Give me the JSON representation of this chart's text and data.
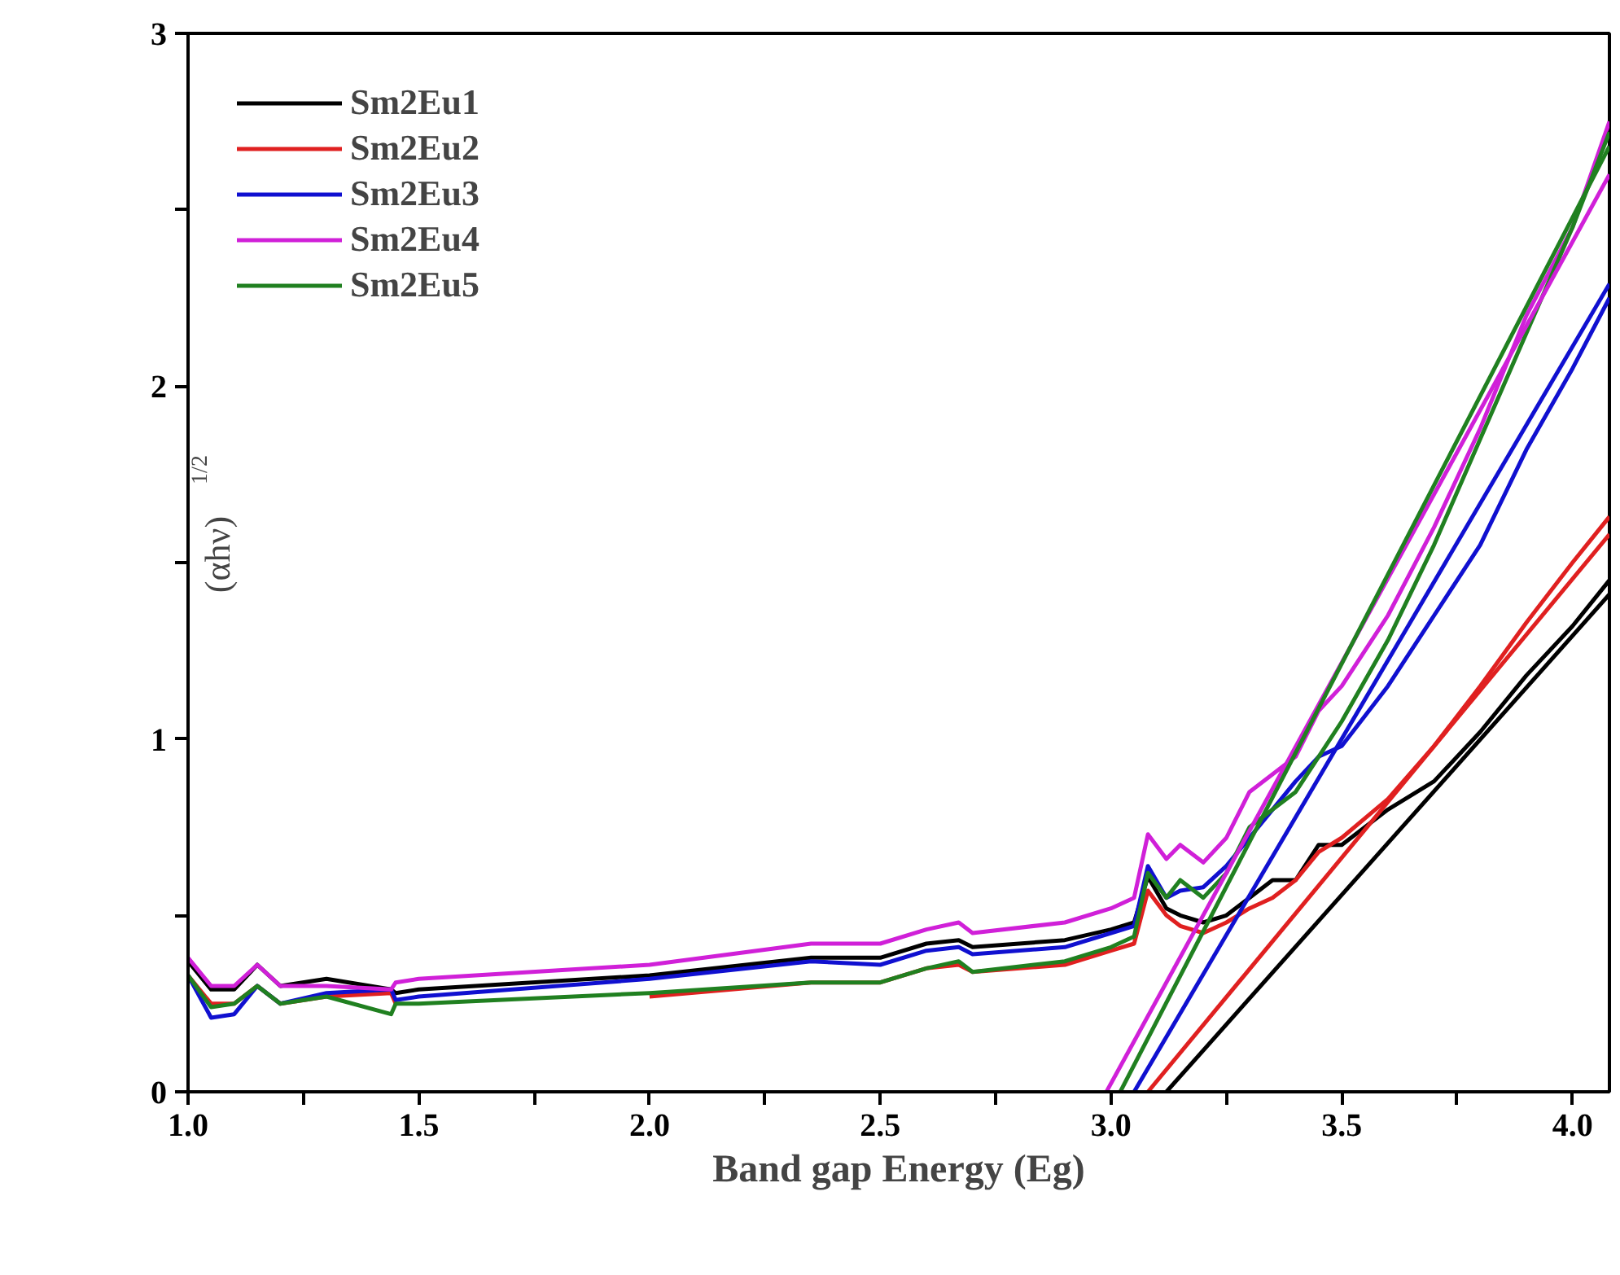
{
  "chart_data": {
    "type": "line",
    "xlabel": "Band gap Energy (Eg)",
    "ylabel": "(αhν)$^{1/2}$",
    "xlim": [
      1.0,
      4.08
    ],
    "ylim": [
      0,
      3
    ],
    "xticks": [
      {
        "value": 1.0,
        "label": "1.0"
      },
      {
        "value": 1.25,
        "label": null
      },
      {
        "value": 1.5,
        "label": "1.5"
      },
      {
        "value": 1.75,
        "label": null
      },
      {
        "value": 2.0,
        "label": "2.0"
      },
      {
        "value": 2.25,
        "label": null
      },
      {
        "value": 2.5,
        "label": "2.5"
      },
      {
        "value": 2.75,
        "label": null
      },
      {
        "value": 3.0,
        "label": "3.0"
      },
      {
        "value": 3.25,
        "label": null
      },
      {
        "value": 3.5,
        "label": "3.5"
      },
      {
        "value": 3.75,
        "label": null
      },
      {
        "value": 4.0,
        "label": "4.0"
      }
    ],
    "yticks": [
      0,
      {
        "value": 0.5,
        "label": null
      },
      1,
      {
        "value": 1.5,
        "label": null
      },
      2,
      {
        "value": 2.5,
        "label": null
      },
      3
    ],
    "grid": false,
    "legend": "top left",
    "marker": "none",
    "line_style": "solid",
    "x": [
      1.0,
      1.05,
      1.1,
      1.15,
      1.2,
      1.3,
      1.44,
      1.45,
      1.5,
      2.0,
      2.35,
      2.5,
      2.6,
      2.67,
      2.7,
      2.9,
      3.0,
      3.05,
      3.08,
      3.12,
      3.15,
      3.2,
      3.25,
      3.3,
      3.35,
      3.4,
      3.45,
      3.5,
      3.6,
      3.7,
      3.8,
      3.9,
      4.0,
      4.08
    ],
    "series": [
      {
        "name": "Sm2Eu1",
        "color": "#000000",
        "values": [
          0.37,
          0.29,
          0.29,
          0.36,
          0.3,
          0.32,
          0.29,
          0.28,
          0.29,
          0.33,
          0.38,
          0.38,
          0.42,
          0.43,
          0.41,
          0.43,
          0.46,
          0.48,
          0.61,
          0.52,
          0.5,
          0.48,
          0.5,
          0.55,
          0.6,
          0.6,
          0.7,
          0.7,
          0.8,
          0.88,
          1.02,
          1.18,
          1.32,
          1.45
        ]
      },
      {
        "name": "Sm2Eu2",
        "color": "#e02020",
        "values": [
          0.33,
          0.25,
          0.25,
          0.3,
          0.25,
          0.27,
          0.28,
          0.25,
          null,
          0.27,
          0.31,
          0.31,
          0.35,
          0.36,
          0.34,
          0.36,
          0.4,
          0.42,
          0.57,
          0.5,
          0.47,
          0.45,
          0.48,
          0.52,
          0.55,
          0.6,
          0.68,
          0.72,
          0.83,
          0.98,
          1.15,
          1.33,
          1.5,
          1.63
        ]
      },
      {
        "name": "Sm2Eu3",
        "color": "#1010d0",
        "values": [
          0.33,
          0.21,
          0.22,
          0.3,
          0.25,
          0.28,
          0.29,
          0.26,
          0.27,
          0.32,
          0.37,
          0.36,
          0.4,
          0.41,
          0.39,
          0.41,
          0.45,
          0.47,
          0.64,
          0.55,
          0.57,
          0.58,
          0.64,
          0.72,
          0.8,
          0.88,
          0.95,
          0.98,
          1.15,
          1.35,
          1.55,
          1.82,
          2.05,
          2.25
        ]
      },
      {
        "name": "Sm2Eu4",
        "color": "#d020d8",
        "values": [
          0.38,
          0.3,
          0.3,
          0.36,
          0.3,
          0.3,
          0.29,
          0.31,
          0.32,
          0.36,
          0.42,
          0.42,
          0.46,
          0.48,
          0.45,
          0.48,
          0.52,
          0.55,
          0.73,
          0.66,
          0.7,
          0.65,
          0.72,
          0.85,
          0.9,
          0.95,
          1.08,
          1.15,
          1.35,
          1.6,
          1.88,
          2.2,
          2.45,
          2.75
        ]
      },
      {
        "name": "Sm2Eu5",
        "color": "#208020",
        "values": [
          0.33,
          0.24,
          0.25,
          0.3,
          0.25,
          0.27,
          0.22,
          0.25,
          0.25,
          0.28,
          0.31,
          0.31,
          0.35,
          0.37,
          0.34,
          0.37,
          0.41,
          0.44,
          0.62,
          0.55,
          0.6,
          0.55,
          0.62,
          0.75,
          0.8,
          0.85,
          0.95,
          1.05,
          1.28,
          1.55,
          1.85,
          2.15,
          2.45,
          2.72
        ]
      },
      {
        "type": "line",
        "color": "#000000",
        "x": [
          3.12,
          4.08
        ],
        "values": [
          0,
          1.41
        ]
      },
      {
        "type": "line",
        "color": "#e02020",
        "x": [
          3.08,
          4.08
        ],
        "values": [
          0,
          1.58
        ]
      },
      {
        "type": "line",
        "color": "#1010d0",
        "x": [
          3.05,
          4.08
        ],
        "values": [
          0,
          2.29
        ]
      },
      {
        "type": "line",
        "color": "#d020d8",
        "x": [
          2.99,
          4.08
        ],
        "values": [
          0,
          2.6
        ]
      },
      {
        "type": "line",
        "color": "#208020",
        "x": [
          3.02,
          4.08
        ],
        "values": [
          0,
          2.68
        ]
      }
    ]
  }
}
